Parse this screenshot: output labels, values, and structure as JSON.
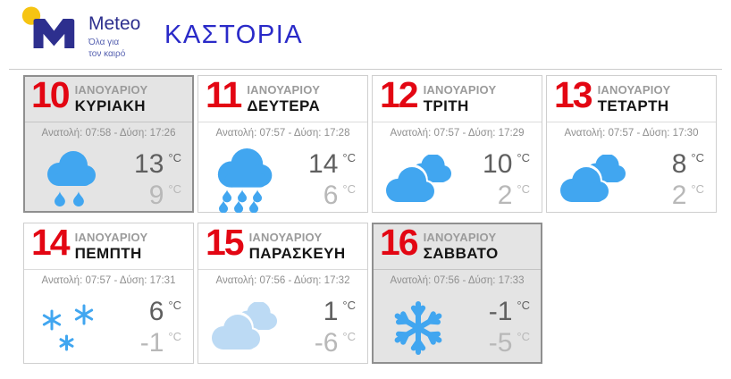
{
  "header": {
    "brand": "Meteo",
    "tagline_line1": "Όλα για",
    "tagline_line2": "τον καιρό",
    "title": "ΚΑΣΤΟΡΙΑ"
  },
  "colors": {
    "accent_red": "#e30613",
    "title_blue": "#2a2ac8",
    "logo_navy": "#2d2f8e",
    "logo_yellow": "#f6c412",
    "icon_blue": "#41a6f0",
    "icon_pale_blue": "#bcdaf4",
    "selected_bg": "#e4e4e4"
  },
  "days": [
    {
      "date": "10",
      "month": "ΙΑΝΟΥΑΡΙΟΥ",
      "day": "ΚΥΡΙΑΚΗ",
      "sun": "Ανατολή: 07:58 - Δύση: 17:26",
      "high": "13",
      "low": "9",
      "unit": "°C",
      "icon": "rain-light",
      "selected": true
    },
    {
      "date": "11",
      "month": "ΙΑΝΟΥΑΡΙΟΥ",
      "day": "ΔΕΥΤΕΡΑ",
      "sun": "Ανατολή: 07:57 - Δύση: 17:28",
      "high": "14",
      "low": "6",
      "unit": "°C",
      "icon": "rain-heavy",
      "selected": false
    },
    {
      "date": "12",
      "month": "ΙΑΝΟΥΑΡΙΟΥ",
      "day": "ΤΡΙΤΗ",
      "sun": "Ανατολή: 07:57 - Δύση: 17:29",
      "high": "10",
      "low": "2",
      "unit": "°C",
      "icon": "clouds",
      "selected": false
    },
    {
      "date": "13",
      "month": "ΙΑΝΟΥΑΡΙΟΥ",
      "day": "ΤΕΤΑΡΤΗ",
      "sun": "Ανατολή: 07:57 - Δύση: 17:30",
      "high": "8",
      "low": "2",
      "unit": "°C",
      "icon": "clouds",
      "selected": false
    },
    {
      "date": "14",
      "month": "ΙΑΝΟΥΑΡΙΟΥ",
      "day": "ΠΕΜΠΤΗ",
      "sun": "Ανατολή: 07:57 - Δύση: 17:31",
      "high": "6",
      "low": "-1",
      "unit": "°C",
      "icon": "snow-light",
      "selected": false
    },
    {
      "date": "15",
      "month": "ΙΑΝΟΥΑΡΙΟΥ",
      "day": "ΠΑΡΑΣΚΕΥΗ",
      "sun": "Ανατολή: 07:56 - Δύση: 17:32",
      "high": "1",
      "low": "-6",
      "unit": "°C",
      "icon": "clouds-pale",
      "selected": false
    },
    {
      "date": "16",
      "month": "ΙΑΝΟΥΑΡΙΟΥ",
      "day": "ΣΑΒΒΑΤΟ",
      "sun": "Ανατολή: 07:56 - Δύση: 17:33",
      "high": "-1",
      "low": "-5",
      "unit": "°C",
      "icon": "snowflake",
      "selected": true
    }
  ]
}
